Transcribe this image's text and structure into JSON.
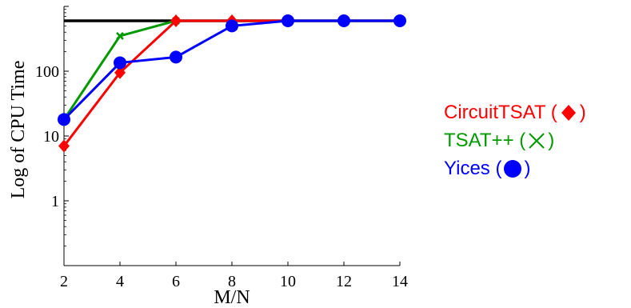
{
  "chart_data": {
    "type": "line",
    "xlabel": "M/N",
    "ylabel": "Log of CPU Time",
    "y_scale": "log",
    "xlim": [
      2,
      14
    ],
    "ylim": [
      0.1,
      1000
    ],
    "x_ticks": [
      "2",
      "4",
      "6",
      "8",
      "10",
      "12",
      "14"
    ],
    "y_ticks": [
      {
        "value": 1,
        "label": "1"
      },
      {
        "value": 10,
        "label": "10"
      },
      {
        "value": 100,
        "label": "100"
      }
    ],
    "timeout_line": 600,
    "x": [
      2,
      4,
      6,
      8,
      10,
      12,
      14
    ],
    "series": [
      {
        "name": "CircuitTSAT",
        "marker": "diamond",
        "color": "#ff0000",
        "values": [
          7,
          95,
          600,
          600,
          600,
          600,
          600
        ]
      },
      {
        "name": "TSAT++",
        "marker": "x",
        "color": "#009900",
        "values": [
          18,
          350,
          600,
          null,
          null,
          null,
          null
        ]
      },
      {
        "name": "Yices",
        "marker": "circle",
        "color": "#0000ff",
        "values": [
          18,
          135,
          165,
          500,
          600,
          600,
          600
        ]
      }
    ]
  },
  "legend": {
    "items": [
      {
        "text": "CircuitTSAT (",
        "close": ")",
        "color": "#ff0000",
        "marker": "diamond-icon"
      },
      {
        "text": "TSAT++ (",
        "close": ")",
        "color": "#009900",
        "marker": "x-icon"
      },
      {
        "text": "Yices (",
        "close": ")",
        "color": "#0000ff",
        "marker": "circle-icon"
      }
    ]
  }
}
